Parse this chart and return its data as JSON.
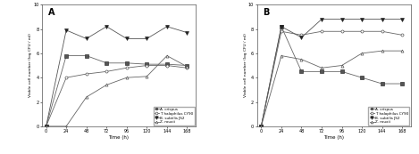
{
  "time": [
    0,
    24,
    48,
    72,
    96,
    120,
    144,
    168
  ],
  "panel_A": {
    "A_crispus": [
      0,
      5.8,
      5.8,
      5.2,
      5.2,
      5.1,
      5.1,
      5.0
    ],
    "T_halophilus": [
      0,
      4.0,
      4.3,
      4.5,
      4.8,
      5.0,
      5.0,
      4.8
    ],
    "B_subtilis": [
      0,
      7.9,
      7.2,
      8.2,
      7.2,
      7.2,
      8.2,
      7.7
    ],
    "Z_rouxii": [
      0,
      0.0,
      2.4,
      3.4,
      4.0,
      4.1,
      5.8,
      4.9
    ]
  },
  "panel_B": {
    "A_crispus": [
      0,
      8.2,
      4.5,
      4.5,
      4.5,
      4.0,
      3.5,
      3.5
    ],
    "T_halophilus": [
      0,
      7.8,
      7.5,
      7.8,
      7.8,
      7.8,
      7.8,
      7.5
    ],
    "B_subtilis": [
      0,
      8.2,
      7.3,
      8.8,
      8.8,
      8.8,
      8.8,
      8.8
    ],
    "Z_rouxii": [
      0,
      5.8,
      5.5,
      4.8,
      5.0,
      6.0,
      6.2,
      6.2
    ]
  },
  "legend_labels": [
    "A. crispus",
    "T. halophilus CY90",
    "B. subtilis JS2",
    "Z. rouxii"
  ],
  "xlabel": "Time (h)",
  "ylabel": "Viable cell number (log CFU / ml)",
  "ylim": [
    0,
    10
  ],
  "yticks": [
    0,
    2,
    4,
    6,
    8,
    10
  ],
  "xticks": [
    0,
    24,
    48,
    72,
    96,
    120,
    144,
    168
  ],
  "label_A": "A",
  "label_B": "B"
}
